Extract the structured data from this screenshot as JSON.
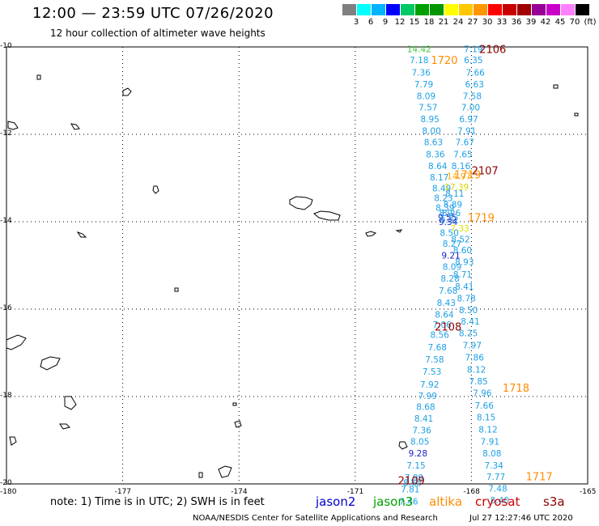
{
  "header": {
    "title": "12:00 — 23:59 UTC 07/26/2020",
    "subtitle": "12 hour collection of altimeter wave heights"
  },
  "scale": {
    "colors": [
      "#808080",
      "#00ffff",
      "#00b4ff",
      "#0000ff",
      "#00c864",
      "#00a000",
      "#009600",
      "#ffff00",
      "#ffc800",
      "#ff9600",
      "#ff0000",
      "#c80000",
      "#a00000",
      "#960096",
      "#c800c8",
      "#ff80ff",
      "#000000"
    ],
    "ticks": [
      "3",
      "6",
      "9",
      "12",
      "15",
      "18",
      "21",
      "24",
      "27",
      "30",
      "33",
      "36",
      "39",
      "42",
      "45",
      "70"
    ],
    "unit": "(ft)"
  },
  "axes": {
    "lat_labels": [
      "-10",
      "-12",
      "-14",
      "-16",
      "-18",
      "-20"
    ],
    "lon_labels": [
      "-180",
      "-177",
      "-174",
      "-171",
      "-168",
      "-165"
    ]
  },
  "times": [
    {
      "text": "2106",
      "color": "#8b0000",
      "lon": -167.45,
      "lat": -10.05
    },
    {
      "text": "1720",
      "color": "#ff8c00",
      "lon": -168.7,
      "lat": -10.3
    },
    {
      "text": "2107",
      "color": "#8b0000",
      "lon": -167.65,
      "lat": -12.82
    },
    {
      "text": "1719",
      "color": "#ff8c00",
      "lon": -168.1,
      "lat": -12.92
    },
    {
      "text": "1719",
      "color": "#ff8c00",
      "lon": -167.75,
      "lat": -13.9
    },
    {
      "text": "2108",
      "color": "#8b0000",
      "lon": -168.6,
      "lat": -16.4
    },
    {
      "text": "1718",
      "color": "#ff8c00",
      "lon": -166.85,
      "lat": -17.8
    },
    {
      "text": "1717",
      "color": "#ff8c00",
      "lon": -166.25,
      "lat": -19.82
    },
    {
      "text": "2109",
      "color": "#8b0000",
      "lon": -169.55,
      "lat": -19.92
    }
  ],
  "tracks": [
    {
      "name": "jason3-west",
      "color": "#1ea0e6",
      "points": [
        {
          "v": "14.42",
          "color": "#3cc83c",
          "lat": -10.05,
          "lon": -169.35
        },
        {
          "v": "7.18",
          "lat": -10.3,
          "lon": -169.35
        },
        {
          "v": "7.36",
          "lat": -10.58,
          "lon": -169.3
        },
        {
          "v": "7.79",
          "lat": -10.85,
          "lon": -169.23
        },
        {
          "v": "8.09",
          "lat": -11.12,
          "lon": -169.17
        },
        {
          "v": "7.57",
          "lat": -11.38,
          "lon": -169.12
        },
        {
          "v": "8.95",
          "lat": -11.65,
          "lon": -169.07
        },
        {
          "v": "8.00",
          "lat": -11.92,
          "lon": -169.03
        },
        {
          "v": "8.63",
          "lat": -12.18,
          "lon": -168.98
        },
        {
          "v": "8.36",
          "lat": -12.45,
          "lon": -168.93
        },
        {
          "v": "8.64",
          "lat": -12.72,
          "lon": -168.87
        },
        {
          "v": "8.17",
          "lat": -12.98,
          "lon": -168.83
        },
        {
          "v": "8.49",
          "lat": -13.23,
          "lon": -168.77
        },
        {
          "v": "8.23",
          "lat": -13.45,
          "lon": -168.72
        },
        {
          "v": "8.39",
          "lat": -13.68,
          "lon": -168.68
        },
        {
          "v": "8.9",
          "lat": -13.8,
          "lon": -168.66
        },
        {
          "v": "9.55",
          "color": "#1e1ec8",
          "lat": -13.9,
          "lon": -168.62
        },
        {
          "v": "9.34",
          "color": "#1e1ec8",
          "lat": -14.0,
          "lon": -168.6
        },
        {
          "v": "8.50",
          "lat": -14.25,
          "lon": -168.57
        },
        {
          "v": "8.27",
          "lat": -14.5,
          "lon": -168.5
        },
        {
          "v": "9.21",
          "color": "#1e1ec8",
          "lat": -14.77,
          "lon": -168.53
        },
        {
          "v": "8.09",
          "lat": -15.03,
          "lon": -168.5
        },
        {
          "v": "8.28",
          "lat": -15.3,
          "lon": -168.55
        },
        {
          "v": "7.68",
          "lat": -15.57,
          "lon": -168.6
        },
        {
          "v": "8.43",
          "lat": -15.85,
          "lon": -168.65
        },
        {
          "v": "8.64",
          "lat": -16.12,
          "lon": -168.7
        },
        {
          "v": "7.06",
          "lat": -16.35,
          "lon": -168.76
        },
        {
          "v": "8.56",
          "lat": -16.58,
          "lon": -168.82
        },
        {
          "v": "7.68",
          "lat": -16.87,
          "lon": -168.88
        },
        {
          "v": "7.58",
          "lat": -17.15,
          "lon": -168.95
        },
        {
          "v": "7.53",
          "lat": -17.43,
          "lon": -169.02
        },
        {
          "v": "7.92",
          "lat": -17.72,
          "lon": -169.08
        },
        {
          "v": "7.99",
          "lat": -17.98,
          "lon": -169.13
        },
        {
          "v": "8.68",
          "lat": -18.23,
          "lon": -169.18
        },
        {
          "v": "8.41",
          "lat": -18.5,
          "lon": -169.23
        },
        {
          "v": "7.36",
          "lat": -18.77,
          "lon": -169.28
        },
        {
          "v": "8.05",
          "lat": -19.03,
          "lon": -169.33
        },
        {
          "v": "9.28",
          "color": "#1e1ec8",
          "lat": -19.3,
          "lon": -169.38
        },
        {
          "v": "7.15",
          "lat": -19.57,
          "lon": -169.43
        },
        {
          "v": "7.99",
          "lat": -19.85,
          "lon": -169.48
        },
        {
          "v": "8.65",
          "lat": -19.97,
          "lon": -169.52
        },
        {
          "v": "7.81",
          "lat": -20.12,
          "lon": -169.58
        },
        {
          "v": "7.46",
          "lat": -20.4,
          "lon": -169.62
        }
      ]
    },
    {
      "name": "jason3-east",
      "color": "#1ea0e6",
      "points": [
        {
          "v": "7.19",
          "lat": -10.05,
          "lon": -167.95
        },
        {
          "v": "6.35",
          "lat": -10.3,
          "lon": -167.95
        },
        {
          "v": "7.66",
          "lat": -10.58,
          "lon": -167.9
        },
        {
          "v": "6.63",
          "lat": -10.85,
          "lon": -167.92
        },
        {
          "v": "7.58",
          "lat": -11.12,
          "lon": -167.98
        },
        {
          "v": "7.00",
          "lat": -11.38,
          "lon": -168.02
        },
        {
          "v": "6.97",
          "lat": -11.65,
          "lon": -168.07
        },
        {
          "v": "7.91",
          "lat": -11.92,
          "lon": -168.12
        },
        {
          "v": "7.67",
          "lat": -12.18,
          "lon": -168.17
        },
        {
          "v": "7.65",
          "lat": -12.45,
          "lon": -168.22
        },
        {
          "v": "8.16",
          "lat": -12.72,
          "lon": -168.27
        },
        {
          "v": "14.97",
          "color": "#ffaa00",
          "lat": -12.95,
          "lon": -168.32
        },
        {
          "v": "17.39",
          "color": "#d8d800",
          "lat": -13.2,
          "lon": -168.38
        },
        {
          "v": "8.11",
          "lat": -13.35,
          "lon": -168.43
        },
        {
          "v": "8.89",
          "lat": -13.6,
          "lon": -168.48
        },
        {
          "v": "8.26",
          "lat": -13.8,
          "lon": -168.52
        },
        {
          "v": "8.32",
          "lat": -13.95,
          "lon": -168.57
        },
        {
          "v": "7.33",
          "color": "#e0e000",
          "lat": -14.15,
          "lon": -168.3
        },
        {
          "v": "8.52",
          "lat": -14.4,
          "lon": -168.28
        },
        {
          "v": "8.60",
          "lat": -14.65,
          "lon": -168.23
        },
        {
          "v": "8.93",
          "lat": -14.92,
          "lon": -168.18
        },
        {
          "v": "8.71",
          "lat": -15.2,
          "lon": -168.23
        },
        {
          "v": "8.41",
          "lat": -15.48,
          "lon": -168.18
        },
        {
          "v": "8.78",
          "lat": -15.75,
          "lon": -168.13
        },
        {
          "v": "8.50",
          "lat": -16.02,
          "lon": -168.08
        },
        {
          "v": "8.41",
          "lat": -16.28,
          "lon": -168.03
        },
        {
          "v": "8.25",
          "lat": -16.55,
          "lon": -168.08
        },
        {
          "v": "7.97",
          "lat": -16.82,
          "lon": -167.98
        },
        {
          "v": "7.86",
          "lat": -17.1,
          "lon": -167.92
        },
        {
          "v": "8.12",
          "lat": -17.38,
          "lon": -167.87
        },
        {
          "v": "7.85",
          "lat": -17.65,
          "lon": -167.82
        },
        {
          "v": "7.96",
          "lat": -17.92,
          "lon": -167.72
        },
        {
          "v": "7.66",
          "lat": -18.2,
          "lon": -167.67
        },
        {
          "v": "8.15",
          "lat": -18.47,
          "lon": -167.62
        },
        {
          "v": "8.12",
          "lat": -18.75,
          "lon": -167.57
        },
        {
          "v": "7.91",
          "lat": -19.03,
          "lon": -167.52
        },
        {
          "v": "8.08",
          "lat": -19.3,
          "lon": -167.47
        },
        {
          "v": "7.34",
          "lat": -19.57,
          "lon": -167.42
        },
        {
          "v": "7.77",
          "lat": -19.83,
          "lon": -167.37
        },
        {
          "v": "7.48",
          "lat": -20.1,
          "lon": -167.32
        },
        {
          "v": "8.40",
          "lat": -20.37,
          "lon": -167.27
        }
      ]
    }
  ],
  "footer": {
    "note": "note: 1) Time is in UTC; 2) SWH is in feet",
    "satellites": [
      {
        "name": "jason2",
        "color": "#0000cc"
      },
      {
        "name": "jason3",
        "color": "#00a000"
      },
      {
        "name": "altika",
        "color": "#ff8c00"
      },
      {
        "name": "cryosat",
        "color": "#cc0000"
      },
      {
        "name": "s3a",
        "color": "#8b0000"
      }
    ],
    "credit": "NOAA/NESDIS Center for Satellite Applications and Research",
    "timestamp": "Jul 27 12:27:46 UTC 2020"
  }
}
